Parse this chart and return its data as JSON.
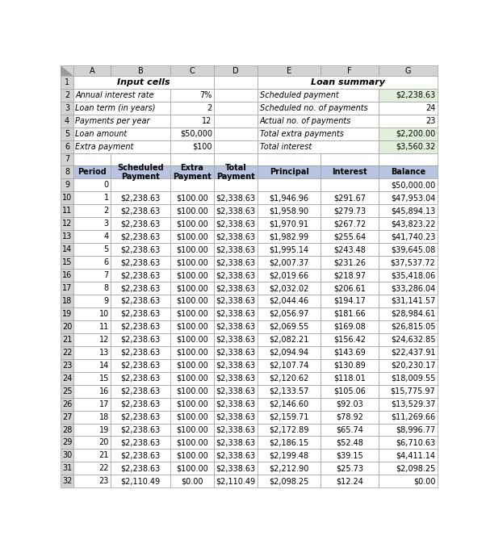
{
  "col_letters": [
    "A",
    "B",
    "C",
    "D",
    "E",
    "F",
    "G"
  ],
  "input_labels": [
    "Annual interest rate",
    "Loan term (in years)",
    "Payments per year",
    "Loan amount",
    "Extra payment"
  ],
  "input_values": [
    "7%",
    "2",
    "12",
    "$50,000",
    "$100"
  ],
  "summary_labels": [
    "Scheduled payment",
    "Scheduled no. of payments",
    "Actual no. of payments",
    "Total extra payments",
    "Total interest"
  ],
  "summary_values": [
    "$2,238.63",
    "24",
    "23",
    "$2,200.00",
    "$3,560.32"
  ],
  "summary_green": [
    true,
    false,
    false,
    true,
    true
  ],
  "summary_right_align": [
    true,
    true,
    true,
    true,
    true
  ],
  "headers": [
    "Period",
    "Scheduled\nPayment",
    "Extra\nPayment",
    "Total\nPayment",
    "Principal",
    "Interest",
    "Balance"
  ],
  "table_data": [
    [
      "0",
      "",
      "",
      "",
      "",
      "",
      "$50,000.00"
    ],
    [
      "1",
      "$2,238.63",
      "$100.00",
      "$2,338.63",
      "$1,946.96",
      "$291.67",
      "$47,953.04"
    ],
    [
      "2",
      "$2,238.63",
      "$100.00",
      "$2,338.63",
      "$1,958.90",
      "$279.73",
      "$45,894.13"
    ],
    [
      "3",
      "$2,238.63",
      "$100.00",
      "$2,338.63",
      "$1,970.91",
      "$267.72",
      "$43,823.22"
    ],
    [
      "4",
      "$2,238.63",
      "$100.00",
      "$2,338.63",
      "$1,982.99",
      "$255.64",
      "$41,740.23"
    ],
    [
      "5",
      "$2,238.63",
      "$100.00",
      "$2,338.63",
      "$1,995.14",
      "$243.48",
      "$39,645.08"
    ],
    [
      "6",
      "$2,238.63",
      "$100.00",
      "$2,338.63",
      "$2,007.37",
      "$231.26",
      "$37,537.72"
    ],
    [
      "7",
      "$2,238.63",
      "$100.00",
      "$2,338.63",
      "$2,019.66",
      "$218.97",
      "$35,418.06"
    ],
    [
      "8",
      "$2,238.63",
      "$100.00",
      "$2,338.63",
      "$2,032.02",
      "$206.61",
      "$33,286.04"
    ],
    [
      "9",
      "$2,238.63",
      "$100.00",
      "$2,338.63",
      "$2,044.46",
      "$194.17",
      "$31,141.57"
    ],
    [
      "10",
      "$2,238.63",
      "$100.00",
      "$2,338.63",
      "$2,056.97",
      "$181.66",
      "$28,984.61"
    ],
    [
      "11",
      "$2,238.63",
      "$100.00",
      "$2,338.63",
      "$2,069.55",
      "$169.08",
      "$26,815.05"
    ],
    [
      "12",
      "$2,238.63",
      "$100.00",
      "$2,338.63",
      "$2,082.21",
      "$156.42",
      "$24,632.85"
    ],
    [
      "13",
      "$2,238.63",
      "$100.00",
      "$2,338.63",
      "$2,094.94",
      "$143.69",
      "$22,437.91"
    ],
    [
      "14",
      "$2,238.63",
      "$100.00",
      "$2,338.63",
      "$2,107.74",
      "$130.89",
      "$20,230.17"
    ],
    [
      "15",
      "$2,238.63",
      "$100.00",
      "$2,338.63",
      "$2,120.62",
      "$118.01",
      "$18,009.55"
    ],
    [
      "16",
      "$2,238.63",
      "$100.00",
      "$2,338.63",
      "$2,133.57",
      "$105.06",
      "$15,775.97"
    ],
    [
      "17",
      "$2,238.63",
      "$100.00",
      "$2,338.63",
      "$2,146.60",
      "$92.03",
      "$13,529.37"
    ],
    [
      "18",
      "$2,238.63",
      "$100.00",
      "$2,338.63",
      "$2,159.71",
      "$78.92",
      "$11,269.66"
    ],
    [
      "19",
      "$2,238.63",
      "$100.00",
      "$2,338.63",
      "$2,172.89",
      "$65.74",
      "$8,996.77"
    ],
    [
      "20",
      "$2,238.63",
      "$100.00",
      "$2,338.63",
      "$2,186.15",
      "$52.48",
      "$6,710.63"
    ],
    [
      "21",
      "$2,238.63",
      "$100.00",
      "$2,338.63",
      "$2,199.48",
      "$39.15",
      "$4,411.14"
    ],
    [
      "22",
      "$2,238.63",
      "$100.00",
      "$2,338.63",
      "$2,212.90",
      "$25.73",
      "$2,098.25"
    ],
    [
      "23",
      "$2,110.49",
      "$0.00",
      "$2,110.49",
      "$2,098.25",
      "$12.24",
      "$0.00"
    ]
  ],
  "color_header_row": "#b8c4e0",
  "color_summary_green": "#e2efda",
  "color_row_num_bg": "#d3d3d3",
  "color_col_letter_bg": "#d3d3d3",
  "color_grid": "#a0a0a0",
  "color_white": "#ffffff"
}
